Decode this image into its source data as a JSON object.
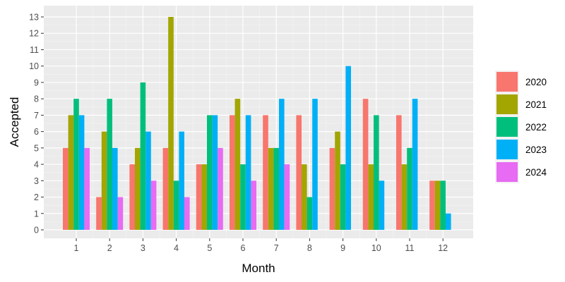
{
  "chart_data": {
    "type": "bar",
    "xlabel": "Month",
    "ylabel": "Accepted",
    "categories": [
      "1",
      "2",
      "3",
      "4",
      "5",
      "6",
      "7",
      "8",
      "9",
      "10",
      "11",
      "12"
    ],
    "ylim": [
      0,
      13
    ],
    "yticks": [
      0,
      1,
      2,
      3,
      4,
      5,
      6,
      7,
      8,
      9,
      10,
      11,
      12,
      13
    ],
    "grid": true,
    "legend_position": "right",
    "series": [
      {
        "name": "2020",
        "color": "#F8766D",
        "values": [
          5,
          2,
          4,
          5,
          4,
          7,
          7,
          7,
          5,
          8,
          7,
          3
        ]
      },
      {
        "name": "2021",
        "color": "#A3A500",
        "values": [
          7,
          6,
          5,
          13,
          4,
          8,
          5,
          4,
          6,
          4,
          4,
          3
        ]
      },
      {
        "name": "2022",
        "color": "#00BF7D",
        "values": [
          8,
          8,
          9,
          3,
          7,
          4,
          5,
          2,
          4,
          7,
          5,
          3
        ]
      },
      {
        "name": "2023",
        "color": "#00B0F6",
        "values": [
          7,
          5,
          6,
          6,
          7,
          7,
          8,
          8,
          10,
          3,
          8,
          1
        ]
      },
      {
        "name": "2024",
        "color": "#E76BF3",
        "values": [
          5,
          2,
          3,
          2,
          5,
          3,
          4,
          null,
          null,
          null,
          null,
          null
        ]
      }
    ]
  }
}
